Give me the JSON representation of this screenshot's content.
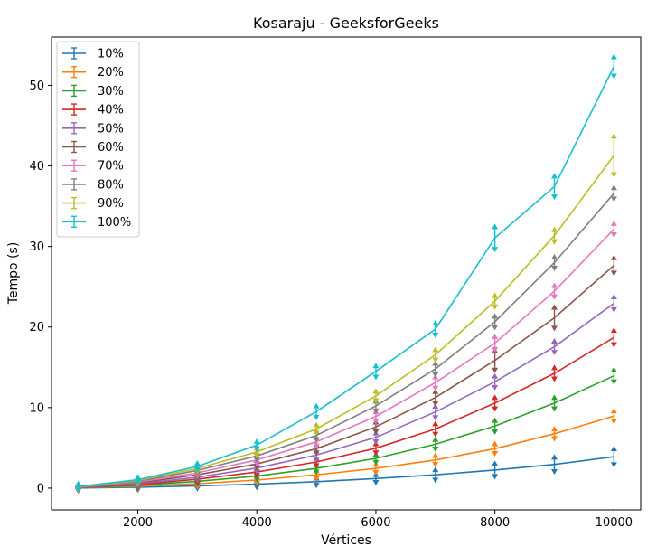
{
  "chart_data": {
    "type": "line",
    "title": "Kosaraju - GeeksforGeeks",
    "xlabel": "Vértices",
    "ylabel": "Tempo (s)",
    "xlim": [
      550,
      10450
    ],
    "ylim": [
      -2.7,
      56.0
    ],
    "x_ticks": [
      2000,
      4000,
      6000,
      8000,
      10000
    ],
    "y_ticks": [
      0,
      10,
      20,
      30,
      40,
      50
    ],
    "grid": false,
    "legend_position": "top-left",
    "x": [
      1000,
      2000,
      3000,
      4000,
      5000,
      6000,
      7000,
      8000,
      9000,
      10000
    ],
    "series": [
      {
        "name": "10%",
        "color": "#1f77b4",
        "values": [
          0.02,
          0.12,
          0.28,
          0.5,
          0.8,
          1.2,
          1.65,
          2.25,
          2.95,
          3.9
        ],
        "errors": [
          0.05,
          0.05,
          0.05,
          0.1,
          0.15,
          0.2,
          0.35,
          0.5,
          0.6,
          0.7
        ]
      },
      {
        "name": "20%",
        "color": "#ff7f0e",
        "values": [
          0.05,
          0.25,
          0.55,
          1.0,
          1.65,
          2.45,
          3.5,
          4.9,
          6.75,
          8.95
        ],
        "errors": [
          0.05,
          0.05,
          0.1,
          0.1,
          0.2,
          0.2,
          0.25,
          0.3,
          0.3,
          0.35
        ]
      },
      {
        "name": "30%",
        "color": "#2ca02c",
        "values": [
          0.05,
          0.35,
          0.85,
          1.5,
          2.45,
          3.7,
          5.45,
          7.7,
          10.55,
          13.95
        ],
        "errors": [
          0.05,
          0.05,
          0.1,
          0.1,
          0.15,
          0.2,
          0.3,
          0.4,
          0.4,
          0.45
        ]
      },
      {
        "name": "40%",
        "color": "#d62728",
        "values": [
          0.07,
          0.45,
          1.1,
          2.0,
          3.25,
          4.95,
          7.35,
          10.55,
          14.25,
          18.7
        ],
        "errors": [
          0.05,
          0.05,
          0.1,
          0.1,
          0.15,
          0.25,
          0.35,
          0.4,
          0.4,
          0.6
        ]
      },
      {
        "name": "50%",
        "color": "#9467bd",
        "values": [
          0.08,
          0.55,
          1.35,
          2.5,
          4.1,
          6.3,
          9.45,
          13.2,
          17.55,
          22.95
        ],
        "errors": [
          0.05,
          0.05,
          0.1,
          0.15,
          0.2,
          0.25,
          0.4,
          0.4,
          0.4,
          0.5
        ]
      },
      {
        "name": "60%",
        "color": "#8c564b",
        "values": [
          0.1,
          0.65,
          1.65,
          3.0,
          4.9,
          7.6,
          11.25,
          15.85,
          21.15,
          27.65
        ],
        "errors": [
          0.05,
          0.05,
          0.1,
          0.15,
          0.2,
          0.3,
          0.45,
          0.9,
          1.0,
          0.65
        ]
      },
      {
        "name": "70%",
        "color": "#e377c2",
        "values": [
          0.12,
          0.75,
          1.9,
          3.5,
          5.75,
          8.9,
          13.1,
          18.0,
          24.45,
          32.15
        ],
        "errors": [
          0.05,
          0.05,
          0.1,
          0.15,
          0.2,
          0.3,
          0.4,
          0.5,
          0.4,
          0.4
        ]
      },
      {
        "name": "80%",
        "color": "#7f7f7f",
        "values": [
          0.14,
          0.85,
          2.2,
          4.0,
          6.55,
          10.2,
          14.8,
          20.65,
          28.0,
          36.6
        ],
        "errors": [
          0.05,
          0.05,
          0.1,
          0.15,
          0.2,
          0.3,
          0.4,
          0.4,
          0.4,
          0.4
        ]
      },
      {
        "name": "90%",
        "color": "#bcbd22",
        "values": [
          0.16,
          0.95,
          2.45,
          4.5,
          7.35,
          11.45,
          16.55,
          23.2,
          31.35,
          41.3
        ],
        "errors": [
          0.05,
          0.05,
          0.1,
          0.15,
          0.2,
          0.3,
          0.35,
          0.4,
          0.45,
          2.1
        ]
      },
      {
        "name": "100%",
        "color": "#17becf",
        "values": [
          0.2,
          1.05,
          2.7,
          5.35,
          9.5,
          14.5,
          19.75,
          31.05,
          37.45,
          52.35
        ],
        "errors": [
          0.05,
          0.05,
          0.1,
          0.15,
          0.4,
          0.4,
          0.45,
          1.1,
          1.0,
          0.9
        ]
      }
    ]
  }
}
